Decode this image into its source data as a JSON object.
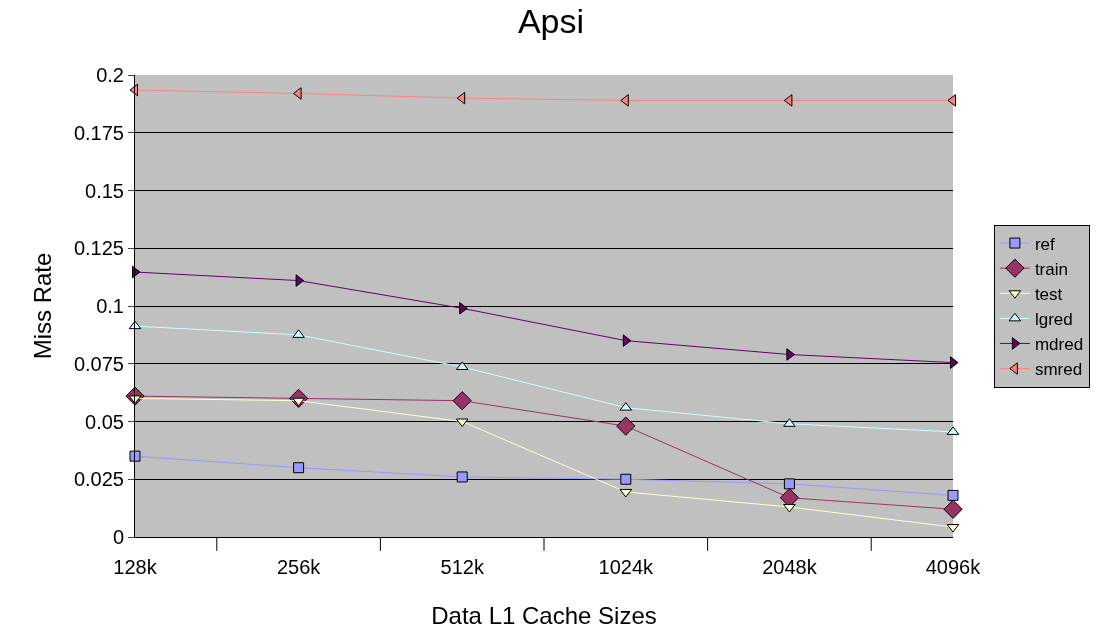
{
  "chart_data": {
    "type": "line",
    "title": "Apsi",
    "xlabel": "Data L1 Cache Sizes",
    "ylabel": "Miss Rate",
    "categories": [
      "128k",
      "256k",
      "512k",
      "1024k",
      "2048k",
      "4096k"
    ],
    "ylim": [
      0,
      0.2
    ],
    "yticks": [
      0,
      0.025,
      0.05,
      0.075,
      0.1,
      0.125,
      0.15,
      0.175,
      0.2
    ],
    "grid": "y",
    "legend": "right",
    "line_style": "solid",
    "series": [
      {
        "name": "ref",
        "color": "#9999ff",
        "marker": "square",
        "values": [
          0.035,
          0.03,
          0.026,
          0.025,
          0.023,
          0.018
        ]
      },
      {
        "name": "train",
        "color": "#993366",
        "marker": "diamond",
        "values": [
          0.061,
          0.06,
          0.059,
          0.048,
          0.017,
          0.012
        ]
      },
      {
        "name": "test",
        "color": "#ffffcc",
        "marker": "triangle-down",
        "values": [
          0.06,
          0.059,
          0.05,
          0.0195,
          0.013,
          0.0043
        ]
      },
      {
        "name": "lgred",
        "color": "#ccffff",
        "marker": "triangle-up",
        "values": [
          0.0913,
          0.0875,
          0.0736,
          0.056,
          0.049,
          0.0455
        ]
      },
      {
        "name": "mdred",
        "color": "#660066",
        "marker": "triangle-right",
        "values": [
          0.1147,
          0.111,
          0.099,
          0.085,
          0.079,
          0.0755
        ]
      },
      {
        "name": "smred",
        "color": "#ff8080",
        "marker": "triangle-left",
        "values": [
          0.1935,
          0.192,
          0.19,
          0.189,
          0.189,
          0.189
        ]
      }
    ]
  }
}
